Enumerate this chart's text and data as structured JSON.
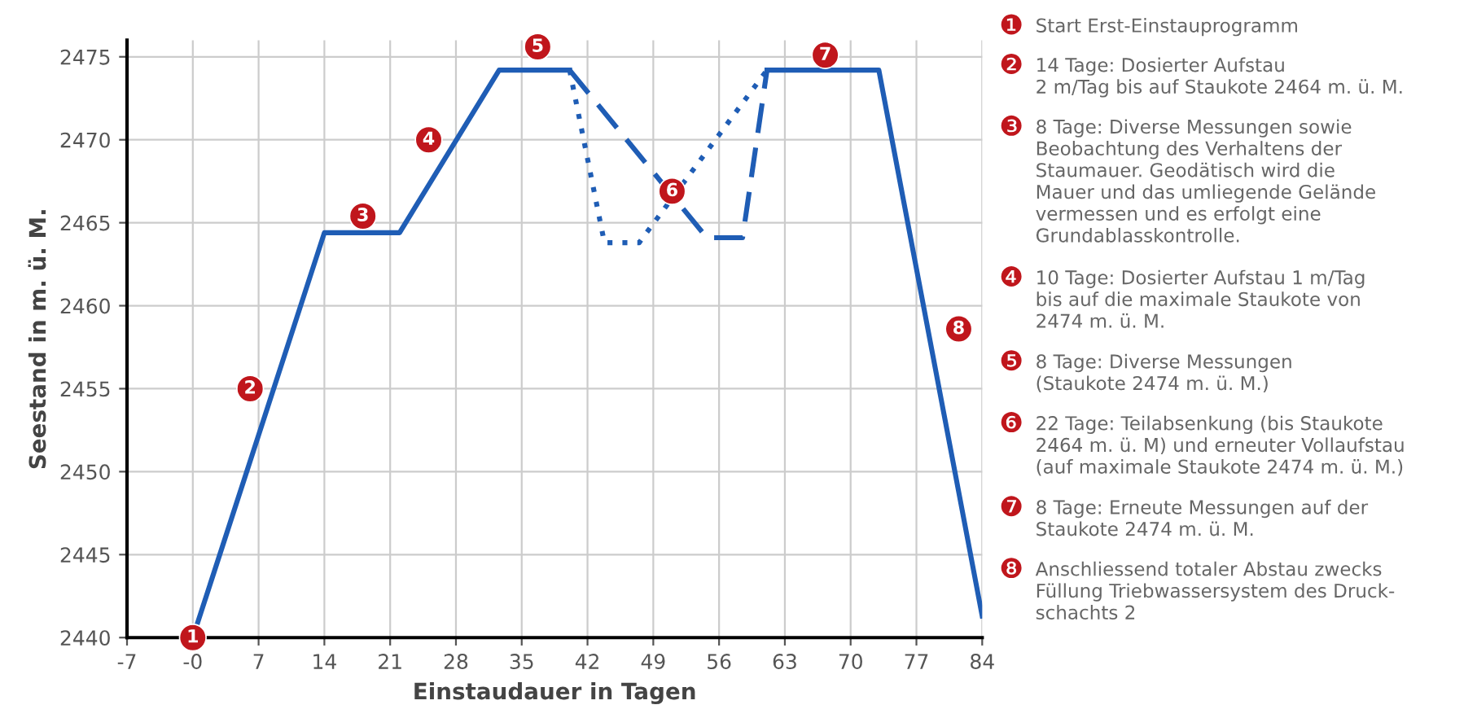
{
  "chart_data": [
    {
      "type": "line",
      "xlabel": "Einstaudauer in Tagen",
      "ylabel": "Seestand in m. ü. M.",
      "xlim": [
        -7,
        84
      ],
      "xticks": [
        -7,
        {
          "value": 0,
          "label": "-0"
        },
        7,
        14,
        21,
        28,
        35,
        42,
        49,
        56,
        63,
        70,
        77,
        84
      ],
      "ylim": [
        2440,
        2476
      ],
      "yticks": [
        2440,
        2445,
        2450,
        2455,
        2460,
        2465,
        2470,
        2475
      ],
      "grid": true,
      "marker": "none",
      "series": [
        {
          "color": "#1f5db5",
          "line_style": "solid",
          "x": [
            0,
            14,
            22,
            32.6,
            40.1
          ],
          "values": [
            2440,
            2464.4,
            2464.4,
            2474.2,
            2474.2
          ]
        },
        {
          "color": "#1f5db5",
          "line_style": "dashed",
          "x": [
            40.1,
            54.7,
            58.5,
            61.1
          ],
          "values": [
            2474.2,
            2464.1,
            2464.1,
            2474.2
          ]
        },
        {
          "color": "#1f5db5",
          "line_style": "dotted",
          "x": [
            40.1,
            43.8,
            47.5,
            61.1
          ],
          "values": [
            2474.2,
            2463.8,
            2463.8,
            2474.2
          ]
        },
        {
          "color": "#1f5db5",
          "line_style": "solid",
          "x": [
            61.1,
            73,
            84
          ],
          "values": [
            2474.2,
            2474.2,
            2441.3
          ]
        }
      ],
      "annotations": [
        {
          "text": "1",
          "x": 0,
          "y": 2440
        },
        {
          "text": "2",
          "x": 6.1,
          "y": 2455
        },
        {
          "text": "3",
          "x": 18.1,
          "y": 2465.4
        },
        {
          "text": "4",
          "x": 25.1,
          "y": 2470
        },
        {
          "text": "5",
          "x": 36.7,
          "y": 2475.6
        },
        {
          "text": "6",
          "x": 51,
          "y": 2466.9
        },
        {
          "text": "7",
          "x": 67.3,
          "y": 2475.1
        },
        {
          "text": "8",
          "x": 81.5,
          "y": 2458.6
        }
      ]
    },
    {
      "type": "other",
      "annotations": [
        "❶",
        "Start Erst-Einstauprogramm",
        "❷",
        "14 Tage: Dosierter Aufstau\n2 m/Tag bis auf Staukote 2464 m. ü. M.",
        "❸",
        "8 Tage: Diverse Messungen sowie\nBeobachtung des Verhaltens der\nStaumauer. Geodätisch wird die\nMauer und das umliegende Gelände\nvermessen und es erfolgt eine\nGrundablasskontrolle.",
        "❹",
        "10 Tage: Dosierter Aufstau 1 m/Tag\nbis auf die maximale Staukote von\n2474 m. ü. M.",
        "❺",
        "8 Tage: Diverse Messungen\n(Staukote 2474 m. ü. M.)",
        "❻",
        "22 Tage: Teilabsenkung (bis Staukote\n2464 m. ü. M) und erneuter Vollaufstau\n(auf maximale Staukote 2474 m. ü. M.)",
        "❼",
        "8 Tage: Erneute Messungen auf der\nStaukote 2474 m. ü. M.",
        "❽",
        "Anschliessend totaler Abstau zwecks\nFüllung Triebwassersystem des Druck-\nschachts 2"
      ]
    }
  ]
}
